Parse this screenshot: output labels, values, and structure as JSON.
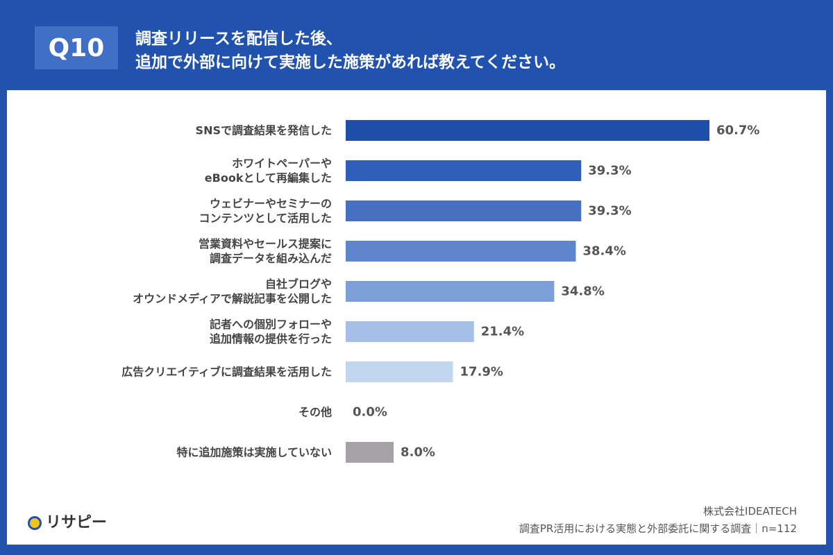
{
  "header": {
    "badge": "Q10",
    "title_lines": [
      "調査リリースを配信した後、",
      "追加で外部に向けて実施した施策があれば教えてください。"
    ]
  },
  "chart_data": {
    "type": "bar",
    "orientation": "horizontal",
    "categories": [
      "SNSで調査結果を発信した",
      "ホワイトペーパーや\neBookとして再編集した",
      "ウェビナーやセミナーの\nコンテンツとして活用した",
      "営業資料やセールス提案に\n調査データを組み込んだ",
      "自社ブログや\nオウンドメディアで解説記事を公開した",
      "記者への個別フォローや\n追加情報の提供を行った",
      "広告クリエイティブに調査結果を活用した",
      "その他",
      "特に追加施策は実施していない"
    ],
    "values": [
      60.7,
      39.3,
      39.3,
      38.4,
      34.8,
      21.4,
      17.9,
      0.0,
      8.0
    ],
    "value_labels": [
      "60.7%",
      "39.3%",
      "39.3%",
      "38.4%",
      "34.8%",
      "21.4%",
      "17.9%",
      "0.0%",
      "8.0%"
    ],
    "colors": [
      "#1f4fa8",
      "#2f5fb8",
      "#4770c0",
      "#5f86cc",
      "#7d9fd8",
      "#a5bfe6",
      "#c2d6f0",
      "#c2d6f0",
      "#a4a2a6"
    ]
  },
  "footer": {
    "logo": "リサピー",
    "source": "株式会社IDEATECH",
    "survey": "調査PR活用における実態と外部委託に関する調査｜n=112"
  }
}
